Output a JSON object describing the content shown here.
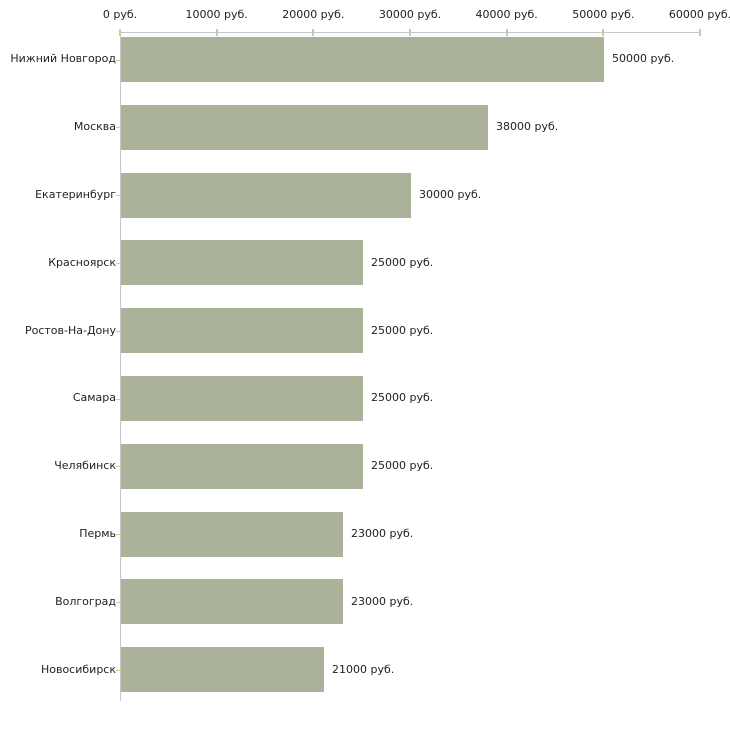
{
  "chart_data": {
    "type": "bar",
    "orientation": "horizontal",
    "title": "",
    "categories": [
      "Нижний Новгород",
      "Москва",
      "Екатеринбург",
      "Красноярск",
      "Ростов-На-Дону",
      "Самара",
      "Челябинск",
      "Пермь",
      "Волгоград",
      "Новосибирск"
    ],
    "values": [
      50000,
      38000,
      30000,
      25000,
      25000,
      25000,
      25000,
      23000,
      23000,
      21000
    ],
    "value_labels": [
      "50000 руб.",
      "38000 руб.",
      "30000 руб.",
      "25000 руб.",
      "25000 руб.",
      "25000 руб.",
      "25000 руб.",
      "23000 руб.",
      "23000 руб.",
      "21000 руб."
    ],
    "x_ticks": [
      {
        "value": 0,
        "label": "0 руб."
      },
      {
        "value": 10000,
        "label": "10000 руб."
      },
      {
        "value": 20000,
        "label": "20000 руб."
      },
      {
        "value": 30000,
        "label": "30000 руб."
      },
      {
        "value": 40000,
        "label": "40000 руб."
      },
      {
        "value": 50000,
        "label": "50000 руб."
      },
      {
        "value": 60000,
        "label": "60000 руб."
      }
    ],
    "xlim": [
      0,
      60000
    ],
    "xlabel": "",
    "ylabel": "",
    "x_axis_position": "top",
    "grid": false,
    "legend": false,
    "colors": {
      "bar": "#abb29a",
      "axis": "#c6c6c6",
      "tick": "#cccc99",
      "text": "#222222",
      "background": "#ffffff"
    }
  }
}
